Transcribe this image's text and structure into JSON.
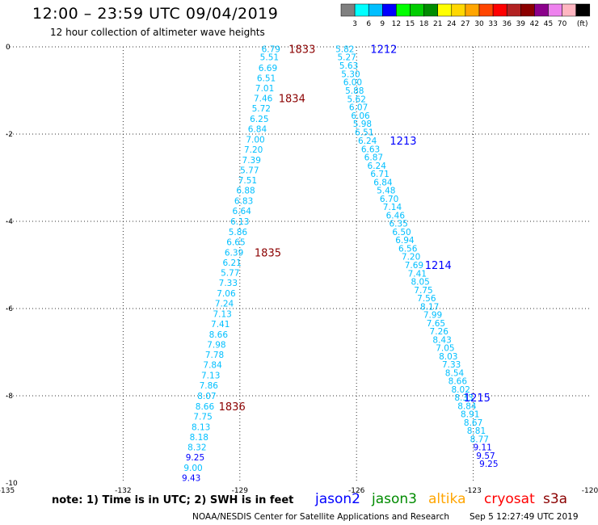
{
  "header": {
    "title": "12:00 – 23:59 UTC 09/04/2019",
    "subtitle": "12 hour collection of altimeter wave heights"
  },
  "colorbar": {
    "colors": [
      "#808080",
      "#00ffff",
      "#00bfff",
      "#0000ff",
      "#00ff00",
      "#00cd00",
      "#008b00",
      "#ffff00",
      "#ffd700",
      "#ffa500",
      "#ff4500",
      "#ff0000",
      "#b22222",
      "#8b0000",
      "#8b008b",
      "#ee82ee",
      "#ffb6c1",
      "#000000"
    ],
    "labels": [
      "3",
      "6",
      "9",
      "12",
      "15",
      "18",
      "21",
      "24",
      "27",
      "30",
      "33",
      "36",
      "39",
      "42",
      "45",
      "70",
      "(ft)"
    ]
  },
  "chart_data": {
    "type": "scatter",
    "xlabel": "",
    "ylabel": "",
    "xlim": [
      -135,
      -120
    ],
    "ylim": [
      -10,
      0
    ],
    "x_ticks": [
      "-135",
      "-132",
      "-129",
      "-126",
      "-123",
      "-120"
    ],
    "y_ticks": [
      "0",
      "-2",
      "-4",
      "-6",
      "-8",
      "-10"
    ],
    "series": [
      {
        "name": "cryosat",
        "color": "#00bfff",
        "points": [
          {
            "x": -128.2,
            "y": -0.05,
            "v": "6.79"
          },
          {
            "x": -128.24,
            "y": -0.23,
            "v": "5.51"
          },
          {
            "x": -128.28,
            "y": -0.48,
            "v": "6.69"
          },
          {
            "x": -128.32,
            "y": -0.71,
            "v": "6.51"
          },
          {
            "x": -128.36,
            "y": -0.94,
            "v": "7.01"
          },
          {
            "x": -128.4,
            "y": -1.18,
            "v": "7.46"
          },
          {
            "x": -128.45,
            "y": -1.41,
            "v": "5.72"
          },
          {
            "x": -128.5,
            "y": -1.65,
            "v": "6.25"
          },
          {
            "x": -128.55,
            "y": -1.88,
            "v": "6.84"
          },
          {
            "x": -128.6,
            "y": -2.12,
            "v": "7.00"
          },
          {
            "x": -128.65,
            "y": -2.35,
            "v": "7.20"
          },
          {
            "x": -128.7,
            "y": -2.59,
            "v": "7.39"
          },
          {
            "x": -128.75,
            "y": -2.82,
            "v": "5.77"
          },
          {
            "x": -128.8,
            "y": -3.06,
            "v": "7.51"
          },
          {
            "x": -128.85,
            "y": -3.29,
            "v": "6.88"
          },
          {
            "x": -128.9,
            "y": -3.53,
            "v": "6.83"
          },
          {
            "x": -128.95,
            "y": -3.76,
            "v": "6.64"
          },
          {
            "x": -129.0,
            "y": -4.0,
            "v": "6.13"
          },
          {
            "x": -129.05,
            "y": -4.24,
            "v": "5.86"
          },
          {
            "x": -129.1,
            "y": -4.47,
            "v": "6.65"
          },
          {
            "x": -129.15,
            "y": -4.71,
            "v": "6.39"
          },
          {
            "x": -129.2,
            "y": -4.94,
            "v": "6.21"
          },
          {
            "x": -129.25,
            "y": -5.18,
            "v": "5.77"
          },
          {
            "x": -129.3,
            "y": -5.41,
            "v": "7.33"
          },
          {
            "x": -129.35,
            "y": -5.65,
            "v": "7.06"
          },
          {
            "x": -129.4,
            "y": -5.88,
            "v": "7.24"
          },
          {
            "x": -129.45,
            "y": -6.12,
            "v": "7.13"
          },
          {
            "x": -129.5,
            "y": -6.35,
            "v": "7.41"
          },
          {
            "x": -129.55,
            "y": -6.59,
            "v": "8.66"
          },
          {
            "x": -129.6,
            "y": -6.82,
            "v": "7.98"
          },
          {
            "x": -129.65,
            "y": -7.06,
            "v": "7.78"
          },
          {
            "x": -129.7,
            "y": -7.29,
            "v": "7.84"
          },
          {
            "x": -129.75,
            "y": -7.53,
            "v": "7.13"
          },
          {
            "x": -129.8,
            "y": -7.76,
            "v": "7.86"
          },
          {
            "x": -129.85,
            "y": -8.0,
            "v": "8.07"
          },
          {
            "x": -129.9,
            "y": -8.24,
            "v": "8.66"
          },
          {
            "x": -129.95,
            "y": -8.47,
            "v": "7.75"
          },
          {
            "x": -130.0,
            "y": -8.71,
            "v": "8.13"
          },
          {
            "x": -130.05,
            "y": -8.94,
            "v": "8.18"
          },
          {
            "x": -130.1,
            "y": -9.18,
            "v": "8.32"
          },
          {
            "x": -130.15,
            "y": -9.41,
            "v": "9.25",
            "c": "#0000ff"
          },
          {
            "x": -130.2,
            "y": -9.65,
            "v": "9.00"
          },
          {
            "x": -130.25,
            "y": -9.88,
            "v": "9.43",
            "c": "#0000ff"
          }
        ],
        "passes": [
          {
            "label": "1833",
            "x": -127.4,
            "y": -0.05
          },
          {
            "label": "1834",
            "x": -127.66,
            "y": -1.18
          },
          {
            "label": "1835",
            "x": -128.28,
            "y": -4.71
          },
          {
            "label": "1836",
            "x": -129.2,
            "y": -8.24
          }
        ],
        "pass_color": "#8b0000"
      },
      {
        "name": "jason2",
        "color": "#00bfff",
        "points": [
          {
            "x": -126.3,
            "y": -0.05,
            "v": "5.82"
          },
          {
            "x": -126.25,
            "y": -0.23,
            "v": "5.27"
          },
          {
            "x": -126.2,
            "y": -0.43,
            "v": "5.63"
          },
          {
            "x": -126.15,
            "y": -0.62,
            "v": "5.30"
          },
          {
            "x": -126.1,
            "y": -0.81,
            "v": "6.00"
          },
          {
            "x": -126.05,
            "y": -1.0,
            "v": "5.88"
          },
          {
            "x": -126.0,
            "y": -1.19,
            "v": "5.62"
          },
          {
            "x": -125.95,
            "y": -1.38,
            "v": "6.07"
          },
          {
            "x": -125.9,
            "y": -1.57,
            "v": "6.06"
          },
          {
            "x": -125.85,
            "y": -1.76,
            "v": "5.98"
          },
          {
            "x": -125.8,
            "y": -1.95,
            "v": "6.51"
          },
          {
            "x": -125.72,
            "y": -2.15,
            "v": "6.24"
          },
          {
            "x": -125.64,
            "y": -2.34,
            "v": "6.63"
          },
          {
            "x": -125.56,
            "y": -2.53,
            "v": "6.87"
          },
          {
            "x": -125.48,
            "y": -2.72,
            "v": "6.24"
          },
          {
            "x": -125.4,
            "y": -2.91,
            "v": "6.71"
          },
          {
            "x": -125.32,
            "y": -3.1,
            "v": "6.84"
          },
          {
            "x": -125.24,
            "y": -3.29,
            "v": "5.48"
          },
          {
            "x": -125.16,
            "y": -3.48,
            "v": "6.70"
          },
          {
            "x": -125.08,
            "y": -3.67,
            "v": "7.14"
          },
          {
            "x": -125.0,
            "y": -3.86,
            "v": "6.46"
          },
          {
            "x": -124.92,
            "y": -4.05,
            "v": "6.35"
          },
          {
            "x": -124.84,
            "y": -4.24,
            "v": "6.50"
          },
          {
            "x": -124.76,
            "y": -4.43,
            "v": "6.94"
          },
          {
            "x": -124.68,
            "y": -4.62,
            "v": "6.56"
          },
          {
            "x": -124.6,
            "y": -4.81,
            "v": "7.20"
          },
          {
            "x": -124.52,
            "y": -5.0,
            "v": "7.69"
          },
          {
            "x": -124.44,
            "y": -5.19,
            "v": "7.41"
          },
          {
            "x": -124.36,
            "y": -5.38,
            "v": "8.05"
          },
          {
            "x": -124.28,
            "y": -5.57,
            "v": "7.75"
          },
          {
            "x": -124.2,
            "y": -5.76,
            "v": "7.56"
          },
          {
            "x": -124.12,
            "y": -5.95,
            "v": "8.17"
          },
          {
            "x": -124.04,
            "y": -6.14,
            "v": "7.99"
          },
          {
            "x": -123.96,
            "y": -6.33,
            "v": "7.65"
          },
          {
            "x": -123.88,
            "y": -6.52,
            "v": "7.26"
          },
          {
            "x": -123.8,
            "y": -6.71,
            "v": "8.43"
          },
          {
            "x": -123.72,
            "y": -6.9,
            "v": "7.05"
          },
          {
            "x": -123.64,
            "y": -7.09,
            "v": "8.03"
          },
          {
            "x": -123.56,
            "y": -7.28,
            "v": "7.33"
          },
          {
            "x": -123.48,
            "y": -7.47,
            "v": "8.54"
          },
          {
            "x": -123.4,
            "y": -7.66,
            "v": "8.66"
          },
          {
            "x": -123.32,
            "y": -7.85,
            "v": "8.02"
          },
          {
            "x": -123.24,
            "y": -8.04,
            "v": "8.33"
          },
          {
            "x": -123.16,
            "y": -8.23,
            "v": "8.84"
          },
          {
            "x": -123.08,
            "y": -8.42,
            "v": "8.91"
          },
          {
            "x": -123.0,
            "y": -8.61,
            "v": "8.67"
          },
          {
            "x": -122.92,
            "y": -8.8,
            "v": "8.81"
          },
          {
            "x": -122.84,
            "y": -8.99,
            "v": "8.77"
          },
          {
            "x": -122.76,
            "y": -9.18,
            "v": "9.11",
            "c": "#0000ff"
          },
          {
            "x": -122.68,
            "y": -9.37,
            "v": "9.57",
            "c": "#0000ff"
          },
          {
            "x": -122.6,
            "y": -9.56,
            "v": "9.25",
            "c": "#0000ff"
          }
        ],
        "passes": [
          {
            "label": "1212",
            "x": -125.3,
            "y": -0.05
          },
          {
            "label": "1213",
            "x": -124.8,
            "y": -2.15
          },
          {
            "label": "1214",
            "x": -123.9,
            "y": -5.0
          },
          {
            "label": "1215",
            "x": -122.9,
            "y": -8.04
          }
        ],
        "pass_color": "#0000ff"
      }
    ]
  },
  "legend": [
    {
      "name": "jason2",
      "color": "#0000ff"
    },
    {
      "name": "jason3",
      "color": "#008b00"
    },
    {
      "name": "altika",
      "color": "#ffa500"
    },
    {
      "name": "cryosat",
      "color": "#ff0000"
    },
    {
      "name": "s3a",
      "color": "#8b0000"
    }
  ],
  "note": "note: 1) Time is in UTC; 2) SWH is in feet",
  "footer": {
    "credit": "NOAA/NESDIS Center for Satellite Applications and Research",
    "timestamp": "Sep  5 12:27:49 UTC 2019"
  }
}
